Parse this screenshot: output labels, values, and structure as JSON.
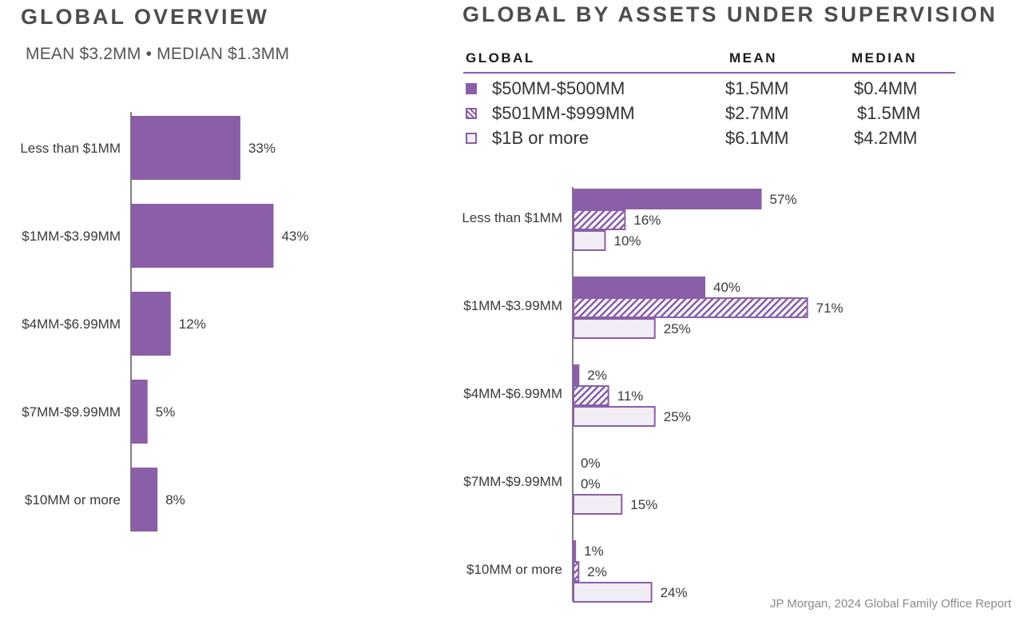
{
  "left_panel": {
    "title": "GLOBAL OVERVIEW",
    "subtitle": "MEAN $3.2MM • MEDIAN $1.3MM"
  },
  "right_panel": {
    "title": "GLOBAL BY ASSETS UNDER SUPERVISION",
    "table": {
      "headers": {
        "group": "GLOBAL",
        "mean": "MEAN",
        "median": "MEDIAN"
      },
      "rows": [
        {
          "label": "$50MM-$500MM",
          "mean": "$1.5MM",
          "median": "$0.4MM",
          "style": "solid"
        },
        {
          "label": "$501MM-$999MM",
          "mean": "$2.7MM",
          "median": "$1.5MM",
          "style": "hatched"
        },
        {
          "label": "$1B or more",
          "mean": "$6.1MM",
          "median": "$4.2MM",
          "style": "light"
        }
      ]
    }
  },
  "colors": {
    "accent": "#8a5fa8",
    "light_fill": "#f1edf5",
    "axis": "#7f7f7f"
  },
  "chart_data": [
    {
      "type": "bar",
      "orientation": "horizontal",
      "categories": [
        "Less than $1MM",
        "$1MM-$3.99MM",
        "$4MM-$6.99MM",
        "$7MM-$9.99MM",
        "$10MM or more"
      ],
      "values": [
        33,
        43,
        12,
        5,
        8
      ],
      "value_labels": [
        "33%",
        "43%",
        "12%",
        "5%",
        "8%"
      ],
      "unit": "%",
      "xlim": [
        0,
        100
      ],
      "grid": false
    },
    {
      "type": "bar",
      "orientation": "horizontal",
      "categories": [
        "Less than $1MM",
        "$1MM-$3.99MM",
        "$4MM-$6.99MM",
        "$7MM-$9.99MM",
        "$10MM or more"
      ],
      "series": [
        {
          "name": "$50MM-$500MM",
          "style": "solid",
          "values": [
            57,
            40,
            2,
            0,
            1
          ],
          "labels": [
            "57%",
            "40%",
            "2%",
            "0%",
            "1%"
          ]
        },
        {
          "name": "$501MM-$999MM",
          "style": "hatched",
          "values": [
            16,
            71,
            11,
            0,
            2
          ],
          "labels": [
            "16%",
            "71%",
            "11%",
            "0%",
            "2%"
          ]
        },
        {
          "name": "$1B or more",
          "style": "light",
          "values": [
            10,
            25,
            25,
            15,
            24
          ],
          "labels": [
            "10%",
            "25%",
            "25%",
            "15%",
            "24%"
          ]
        }
      ],
      "unit": "%",
      "xlim": [
        0,
        100
      ],
      "grid": false,
      "legend": "top"
    }
  ],
  "source": "JP Morgan, 2024 Global Family Office Report"
}
